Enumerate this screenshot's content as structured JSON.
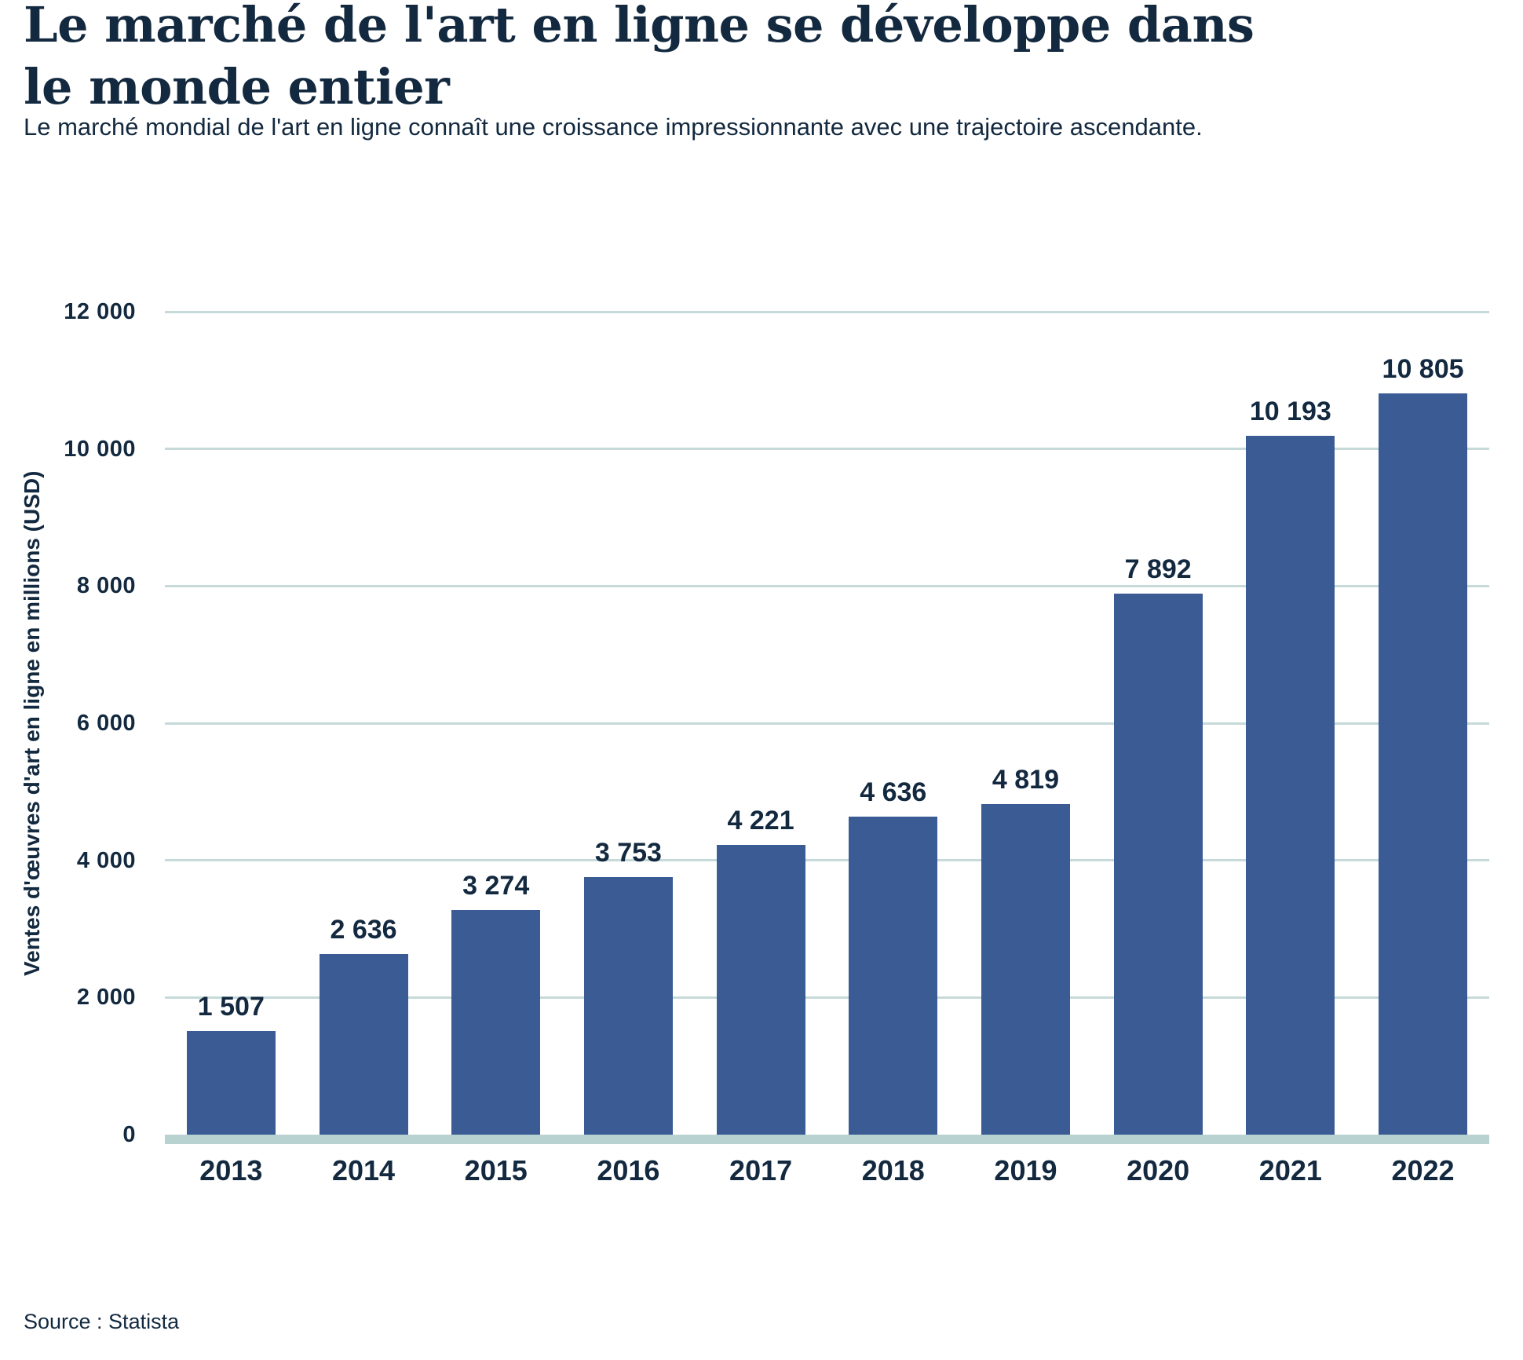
{
  "header": {
    "title": "Le marché de l'art en ligne se développe dans le monde entier",
    "subtitle": "Le marché mondial de l'art en ligne connaît une croissance impressionnante avec une trajectoire ascendante."
  },
  "chart_data": {
    "type": "bar",
    "title": "Le marché de l'art en ligne se développe dans le monde entier",
    "categories": [
      "2013",
      "2014",
      "2015",
      "2016",
      "2017",
      "2018",
      "2019",
      "2020",
      "2021",
      "2022"
    ],
    "values": [
      1507,
      2636,
      3274,
      3753,
      4221,
      4636,
      4819,
      7892,
      10193,
      10805
    ],
    "value_labels": [
      "1 507",
      "2 636",
      "3 274",
      "3 753",
      "4 221",
      "4 636",
      "4 819",
      "7 892",
      "10 193",
      "10 805"
    ],
    "xlabel": "",
    "ylabel": "Ventes d'œuvres d'art en ligne en millions (USD)",
    "ylim": [
      0,
      12000
    ],
    "yticks": [
      0,
      2000,
      4000,
      6000,
      8000,
      10000,
      12000
    ],
    "ytick_labels": [
      "0",
      "2 000",
      "4 000",
      "6 000",
      "8 000",
      "10 000",
      "12 000"
    ],
    "grid": "horizontal-on",
    "legend": "none",
    "colors": {
      "bar": "#3A5B94",
      "gridline": "#C6DADA",
      "baseline": "#B8D1D1",
      "text": "#13293F",
      "background": "#FFFFFF"
    }
  },
  "footer": {
    "source": "Source : Statista"
  }
}
